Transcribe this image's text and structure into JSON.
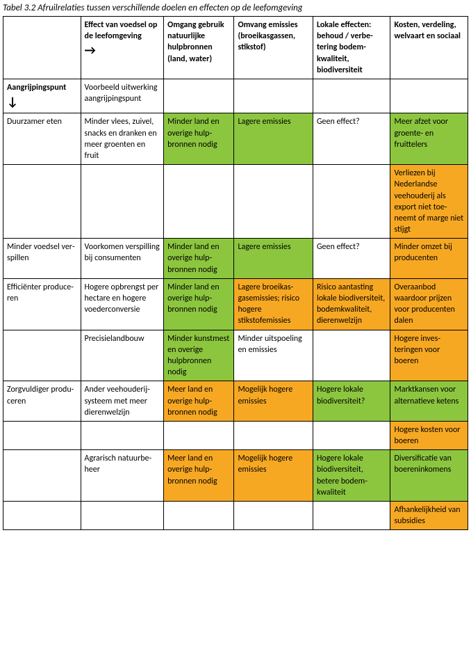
{
  "caption": "Tabel 3.2 Afruilrelaties tussen verschillende doelen en effecten op de leefomgeving",
  "colors": {
    "green": "#8cc63f",
    "orange": "#f7a823",
    "white": "#ffffff"
  },
  "headers": {
    "h1a": "Effect van voedsel op de leefomgeving",
    "h1arrow": "→",
    "h2": "Omgang ge­bruik natuur­lijke hulpbronnen (land, water)",
    "h3": "Omvang emis­sies (broeikas­gassen, stikstof)",
    "h4": "Lokale effecten: behoud / verbe­tering bodem­kwaliteit, biodiversiteit",
    "h5": "Kosten, verde­ling, welvaart en sociaal"
  },
  "rows": [
    {
      "label": "Aangrijpingspunt",
      "labelBold": true,
      "arrow": "↓",
      "c2": {
        "text": "Voorbeeld uitwer­king aangrijpings­punt",
        "color": "white"
      },
      "c3": {
        "text": "",
        "color": "white"
      },
      "c4": {
        "text": "",
        "color": "white"
      },
      "c5": {
        "text": "",
        "color": "white"
      },
      "c6": {
        "text": "",
        "color": "white"
      }
    },
    {
      "label": "Duurzamer eten",
      "c2": {
        "text": "Minder vlees, zui­vel, snacks en dran­ken en meer groenten en fruit",
        "color": "white"
      },
      "c3": {
        "text": "Minder land en overige hulp­bronnen nodig",
        "color": "green"
      },
      "c4": {
        "text": "Lagere emissies",
        "color": "green"
      },
      "c5": {
        "text": "Geen effect?",
        "color": "white"
      },
      "c6": {
        "text": "Meer afzet voor groente- en fruittelers",
        "color": "green"
      }
    },
    {
      "label": "",
      "c2": {
        "text": "",
        "color": "white"
      },
      "c3": {
        "text": "",
        "color": "white"
      },
      "c4": {
        "text": "",
        "color": "white"
      },
      "c5": {
        "text": "",
        "color": "white"
      },
      "c6": {
        "text": "Verliezen bij Nederlandse veehouderij als export niet toe­neemt of marge niet stijgt",
        "color": "orange"
      }
    },
    {
      "label": "Minder voedsel ver­spillen",
      "c2": {
        "text": "Voorkomen verspil­ling bij consumen­ten",
        "color": "white"
      },
      "c3": {
        "text": "Minder land en overige hulp­bronnen nodig",
        "color": "green"
      },
      "c4": {
        "text": "Lagere emissies",
        "color": "green"
      },
      "c5": {
        "text": "Geen effect?",
        "color": "white"
      },
      "c6": {
        "text": "Minder omzet bij producen­ten",
        "color": "orange"
      }
    },
    {
      "label": "Efficiënter produce­ren",
      "c2": {
        "text": "Hogere opbrengst per hectare en ho­gere voederconver­sie",
        "color": "white"
      },
      "c3": {
        "text": "Minder land en overige hulp­bronnen nodig",
        "color": "green"
      },
      "c4": {
        "text": "Lagere broeikas­gasemissies; ri­sico hogere stikstofemissies",
        "color": "orange"
      },
      "c5": {
        "text": "Risico aantasting lokale biodiversi­teit, bodemkwa­liteit, dierenwelzijn",
        "color": "orange"
      },
      "c6": {
        "text": "Overaanbod waardoor prij­zen voor pro­ducenten dalen",
        "color": "orange"
      }
    },
    {
      "label": "",
      "c2": {
        "text": "Precisielandbouw",
        "color": "white"
      },
      "c3": {
        "text": "Minder kunst­mest en ove­rige hulpbronnen nodig",
        "color": "green"
      },
      "c4": {
        "text": "Minder uitspoe­ling en emissies",
        "color": "white"
      },
      "c5": {
        "text": "",
        "color": "white"
      },
      "c6": {
        "text": "Hogere inves­teringen voor boeren",
        "color": "orange"
      }
    },
    {
      "label": "Zorgvuldiger produ­ceren",
      "c2": {
        "text": "Ander veehouderij­systeem met meer dierenwelzijn",
        "color": "white"
      },
      "c3": {
        "text": "Meer land en overige hulp­bronnen nodig",
        "color": "orange"
      },
      "c4": {
        "text": "Mogelijk hogere emissies",
        "color": "orange"
      },
      "c5": {
        "text": "Hogere lokale biodiversiteit?",
        "color": "green"
      },
      "c6": {
        "text": "Marktkansen voor alterna­tieve ketens",
        "color": "green"
      }
    },
    {
      "label": "",
      "c2": {
        "text": "",
        "color": "white"
      },
      "c3": {
        "text": "",
        "color": "white"
      },
      "c4": {
        "text": "",
        "color": "white"
      },
      "c5": {
        "text": "",
        "color": "white"
      },
      "c6": {
        "text": "Hogere kosten voor boeren",
        "color": "orange"
      }
    },
    {
      "label": "",
      "c2": {
        "text": "Agrarisch natuurbe­heer",
        "color": "white"
      },
      "c3": {
        "text": "Meer land en overige hulp­bronnen nodig",
        "color": "orange"
      },
      "c4": {
        "text": "Mogelijk hogere emissies",
        "color": "orange"
      },
      "c5": {
        "text": "Hogere lokale biodiversiteit, betere bodem­kwaliteit",
        "color": "green"
      },
      "c6": {
        "text": "Diversificatie van boerenin­komens",
        "color": "green"
      }
    },
    {
      "label": "",
      "c2": {
        "text": "",
        "color": "white"
      },
      "c3": {
        "text": "",
        "color": "white"
      },
      "c4": {
        "text": "",
        "color": "white"
      },
      "c5": {
        "text": "",
        "color": "white"
      },
      "c6": {
        "text": "Afhankelijkheid van subsidies",
        "color": "orange"
      }
    }
  ]
}
